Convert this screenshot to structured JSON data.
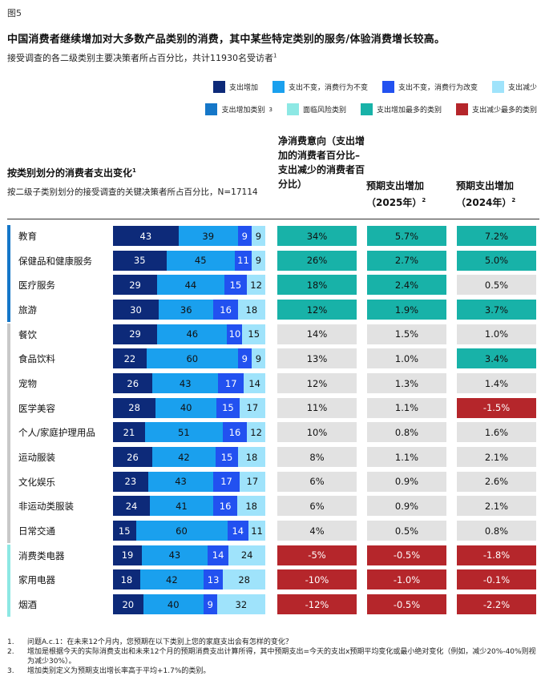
{
  "figure_label": "图5",
  "title": "中国消费者继续增加对大多数产品类别的消费，其中某些特定类别的服务/体验消费增长较高。",
  "subtitle": "接受调查的各二级类别主要决策者所占百分比，共计11930名受访者",
  "subtitle_sup": "1",
  "legend": {
    "row1": [
      {
        "label": "支出增加",
        "color": "#0d2a79"
      },
      {
        "label": "支出不变，消费行为不变",
        "color": "#1aa0ee"
      },
      {
        "label": "支出不变，消费行为改变",
        "color": "#2251f0"
      },
      {
        "label": "支出减少",
        "color": "#9fe3fb"
      }
    ],
    "row2": [
      {
        "label": "支出增加类别",
        "sup": "3",
        "color": "#1577c8"
      },
      {
        "label": "面临风险类别",
        "color": "#8de8e4"
      },
      {
        "label": "支出增加最多的类别",
        "color": "#18b2a8"
      },
      {
        "label": "支出减少最多的类别",
        "color": "#b5262b"
      }
    ]
  },
  "section_title": "按类别划分的消费者支出变化",
  "section_title_sup": "1",
  "section_subtitle": "按二级子类别划分的接受调查的关键决策者所占百分比，N=17114",
  "col_headers": {
    "net": "净消费意向（支出增加的消费者百分比–支出减少的消费者百分比）",
    "y2025": "预期支出增加（2025年）",
    "y2024": "预期支出增加（2024年）",
    "sup": "2"
  },
  "groups": [
    {
      "color": "#1577c8",
      "start": 0,
      "count": 4
    },
    {
      "color": "#c8c8c8",
      "start": 4,
      "count": 9
    },
    {
      "color": "#8de8e4",
      "start": 13,
      "count": 3
    }
  ],
  "chart_data": {
    "type": "bar",
    "stacked": true,
    "orientation": "horizontal",
    "categories": [
      "教育",
      "保健品和健康服务",
      "医疗服务",
      "旅游",
      "餐饮",
      "食品饮料",
      "宠物",
      "医学美容",
      "个人/家庭护理用品",
      "运动服装",
      "文化娱乐",
      "非运动类服装",
      "日常交通",
      "消费类电器",
      "家用电器",
      "烟酒"
    ],
    "series": [
      {
        "name": "支出增加",
        "values": [
          43,
          35,
          29,
          30,
          29,
          22,
          26,
          28,
          21,
          26,
          23,
          24,
          15,
          19,
          18,
          20
        ]
      },
      {
        "name": "支出不变，消费行为不变",
        "values": [
          39,
          45,
          44,
          36,
          46,
          60,
          43,
          40,
          51,
          42,
          43,
          41,
          60,
          43,
          42,
          40
        ]
      },
      {
        "name": "支出不变，消费行为改变",
        "values": [
          9,
          11,
          15,
          16,
          10,
          9,
          17,
          15,
          16,
          15,
          17,
          16,
          14,
          14,
          13,
          9
        ]
      },
      {
        "name": "支出减少",
        "values": [
          9,
          9,
          12,
          18,
          15,
          9,
          14,
          17,
          12,
          18,
          17,
          18,
          11,
          24,
          28,
          32
        ]
      }
    ],
    "net_intent": [
      "34%",
      "26%",
      "18%",
      "12%",
      "14%",
      "13%",
      "12%",
      "11%",
      "10%",
      "8%",
      "6%",
      "6%",
      "4%",
      "-5%",
      "-10%",
      "-12%"
    ],
    "expected_2025": [
      "5.7%",
      "2.7%",
      "2.4%",
      "1.9%",
      "1.5%",
      "1.0%",
      "1.3%",
      "1.1%",
      "0.8%",
      "1.1%",
      "0.9%",
      "0.9%",
      "0.5%",
      "-0.5%",
      "-1.0%",
      "-0.5%"
    ],
    "expected_2024": [
      "7.2%",
      "5.0%",
      "0.5%",
      "3.7%",
      "1.0%",
      "3.4%",
      "1.4%",
      "-1.5%",
      "1.6%",
      "2.1%",
      "2.6%",
      "2.1%",
      "0.8%",
      "-1.8%",
      "-0.1%",
      "-2.2%"
    ],
    "net_shade": [
      "hi",
      "hi",
      "hi",
      "hi",
      "neu",
      "neu",
      "neu",
      "neu",
      "neu",
      "neu",
      "neu",
      "neu",
      "neu",
      "lo",
      "lo",
      "lo"
    ],
    "shade_2025": [
      "hi",
      "hi",
      "hi",
      "hi",
      "neu",
      "neu",
      "neu",
      "neu",
      "neu",
      "neu",
      "neu",
      "neu",
      "neu",
      "lo",
      "lo",
      "lo"
    ],
    "shade_2024": [
      "hi",
      "hi",
      "neu",
      "hi",
      "neu",
      "hi",
      "neu",
      "lo",
      "neu",
      "neu",
      "neu",
      "neu",
      "neu",
      "lo",
      "lo",
      "lo"
    ]
  },
  "notes": [
    {
      "num": "1.",
      "text": "问题A.c.1：在未来12个月内，您预期在以下类别上您的家庭支出会有怎样的变化？"
    },
    {
      "num": "2.",
      "text": "增加是根据今天的实际消费支出和未来12个月的预期消费支出计算所得，其中预期支出=今天的支出x预期平均变化或最小绝对变化（例如，减少20%-40%则视为减少30%）。"
    },
    {
      "num": "3.",
      "text": "增加类别定义为预期支出增长率高于平均+1.7%的类别。"
    }
  ]
}
